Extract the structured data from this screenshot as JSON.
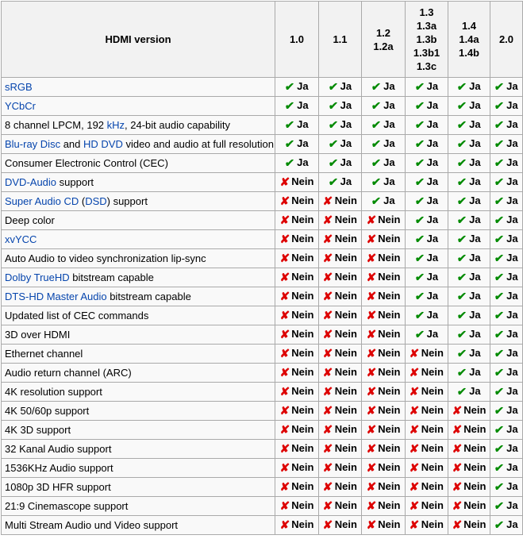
{
  "table": {
    "title": "hdmi-version-feature-comparison",
    "header": {
      "feature_label": "HDMI version",
      "version_columns": [
        [
          "1.0"
        ],
        [
          "1.1"
        ],
        [
          "1.2",
          "1.2a"
        ],
        [
          "1.3",
          "1.3a",
          "1.3b",
          "1.3b1",
          "1.3c"
        ],
        [
          "1.4",
          "1.4a",
          "1.4b"
        ],
        [
          "2.0"
        ]
      ]
    },
    "value_labels": {
      "yes": "Ja",
      "no": "Nein"
    },
    "icons": {
      "check": "✔",
      "cross": "✘"
    },
    "colors": {
      "check_green": "#008a00",
      "cross_red": "#dd0000",
      "link_blue": "#0645ad",
      "header_bg": "#f2f2f2",
      "cell_bg": "#f9f9f9",
      "border": "#aaaaaa"
    },
    "rows": [
      {
        "feature": [
          {
            "t": "sRGB",
            "link": true
          }
        ],
        "values": [
          "ja",
          "ja",
          "ja",
          "ja",
          "ja",
          "ja"
        ]
      },
      {
        "feature": [
          {
            "t": "YCbCr",
            "link": true
          }
        ],
        "values": [
          "ja",
          "ja",
          "ja",
          "ja",
          "ja",
          "ja"
        ]
      },
      {
        "feature": [
          {
            "t": "8 channel LPCM, 192 ",
            "link": false
          },
          {
            "t": "kHz",
            "link": true
          },
          {
            "t": ", 24-bit audio capability",
            "link": false
          }
        ],
        "values": [
          "ja",
          "ja",
          "ja",
          "ja",
          "ja",
          "ja"
        ]
      },
      {
        "feature": [
          {
            "t": "Blu-ray Disc",
            "link": true
          },
          {
            "t": " and ",
            "link": false
          },
          {
            "t": "HD DVD",
            "link": true
          },
          {
            "t": " video and audio at full resolution",
            "link": false
          }
        ],
        "values": [
          "ja",
          "ja",
          "ja",
          "ja",
          "ja",
          "ja"
        ]
      },
      {
        "feature": [
          {
            "t": "Consumer Electronic Control (CEC)",
            "link": false
          }
        ],
        "values": [
          "ja",
          "ja",
          "ja",
          "ja",
          "ja",
          "ja"
        ]
      },
      {
        "feature": [
          {
            "t": "DVD-Audio",
            "link": true
          },
          {
            "t": " support",
            "link": false
          }
        ],
        "values": [
          "nein",
          "ja",
          "ja",
          "ja",
          "ja",
          "ja"
        ]
      },
      {
        "feature": [
          {
            "t": "Super Audio CD",
            "link": true
          },
          {
            "t": " (",
            "link": false
          },
          {
            "t": "DSD",
            "link": true
          },
          {
            "t": ") support",
            "link": false
          }
        ],
        "values": [
          "nein",
          "nein",
          "ja",
          "ja",
          "ja",
          "ja"
        ]
      },
      {
        "feature": [
          {
            "t": "Deep color",
            "link": false
          }
        ],
        "values": [
          "nein",
          "nein",
          "nein",
          "ja",
          "ja",
          "ja"
        ]
      },
      {
        "feature": [
          {
            "t": "xvYCC",
            "link": true
          }
        ],
        "values": [
          "nein",
          "nein",
          "nein",
          "ja",
          "ja",
          "ja"
        ]
      },
      {
        "feature": [
          {
            "t": "Auto Audio to video synchronization lip-sync",
            "link": false
          }
        ],
        "values": [
          "nein",
          "nein",
          "nein",
          "ja",
          "ja",
          "ja"
        ]
      },
      {
        "feature": [
          {
            "t": "Dolby TrueHD",
            "link": true
          },
          {
            "t": " bitstream capable",
            "link": false
          }
        ],
        "values": [
          "nein",
          "nein",
          "nein",
          "ja",
          "ja",
          "ja"
        ]
      },
      {
        "feature": [
          {
            "t": "DTS-HD Master Audio",
            "link": true
          },
          {
            "t": " bitstream capable",
            "link": false
          }
        ],
        "values": [
          "nein",
          "nein",
          "nein",
          "ja",
          "ja",
          "ja"
        ]
      },
      {
        "feature": [
          {
            "t": "Updated list of CEC commands",
            "link": false
          }
        ],
        "values": [
          "nein",
          "nein",
          "nein",
          "ja",
          "ja",
          "ja"
        ]
      },
      {
        "feature": [
          {
            "t": "3D over HDMI",
            "link": false
          }
        ],
        "values": [
          "nein",
          "nein",
          "nein",
          "ja",
          "ja",
          "ja"
        ]
      },
      {
        "feature": [
          {
            "t": "Ethernet channel",
            "link": false
          }
        ],
        "values": [
          "nein",
          "nein",
          "nein",
          "nein",
          "ja",
          "ja"
        ]
      },
      {
        "feature": [
          {
            "t": "Audio return channel (ARC)",
            "link": false
          }
        ],
        "values": [
          "nein",
          "nein",
          "nein",
          "nein",
          "ja",
          "ja"
        ]
      },
      {
        "feature": [
          {
            "t": "4K resolution support",
            "link": false
          }
        ],
        "values": [
          "nein",
          "nein",
          "nein",
          "nein",
          "ja",
          "ja"
        ]
      },
      {
        "feature": [
          {
            "t": "4K 50/60p support",
            "link": false
          }
        ],
        "values": [
          "nein",
          "nein",
          "nein",
          "nein",
          "nein",
          "ja"
        ]
      },
      {
        "feature": [
          {
            "t": "4K 3D support",
            "link": false
          }
        ],
        "values": [
          "nein",
          "nein",
          "nein",
          "nein",
          "nein",
          "ja"
        ]
      },
      {
        "feature": [
          {
            "t": "32 Kanal Audio support",
            "link": false
          }
        ],
        "values": [
          "nein",
          "nein",
          "nein",
          "nein",
          "nein",
          "ja"
        ]
      },
      {
        "feature": [
          {
            "t": "1536KHz Audio support",
            "link": false
          }
        ],
        "values": [
          "nein",
          "nein",
          "nein",
          "nein",
          "nein",
          "ja"
        ]
      },
      {
        "feature": [
          {
            "t": "1080p 3D HFR support",
            "link": false
          }
        ],
        "values": [
          "nein",
          "nein",
          "nein",
          "nein",
          "nein",
          "ja"
        ]
      },
      {
        "feature": [
          {
            "t": "21:9 Cinemascope support",
            "link": false
          }
        ],
        "values": [
          "nein",
          "nein",
          "nein",
          "nein",
          "nein",
          "ja"
        ]
      },
      {
        "feature": [
          {
            "t": "Multi Stream Audio und Video support",
            "link": false
          }
        ],
        "values": [
          "nein",
          "nein",
          "nein",
          "nein",
          "nein",
          "ja"
        ]
      }
    ]
  }
}
